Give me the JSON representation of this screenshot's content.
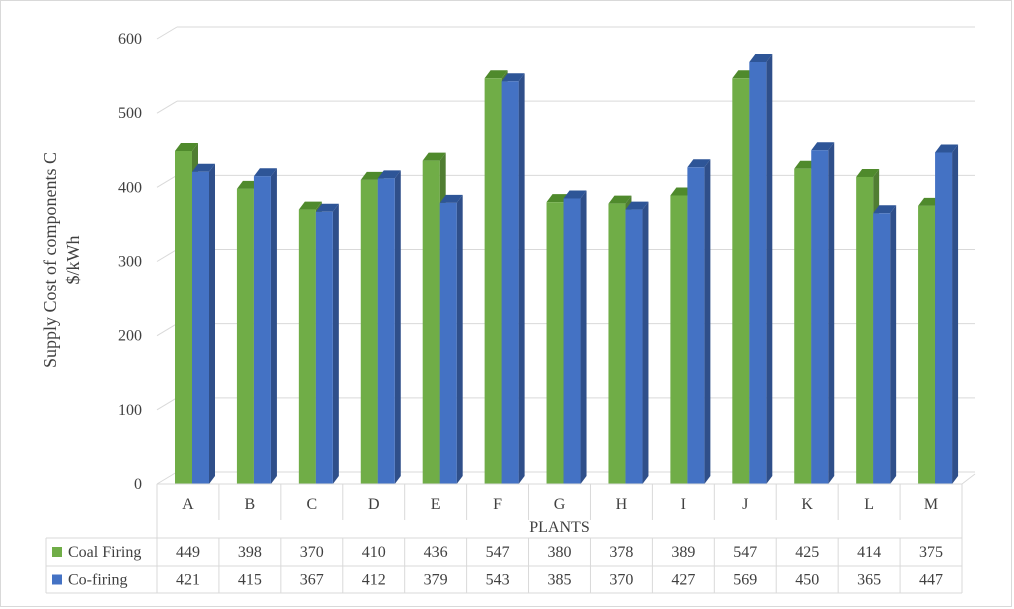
{
  "chart_data": {
    "type": "bar",
    "title": "",
    "ylabel_line1": "Supply  Cost  of components C",
    "ylabel_line2": "$/kWh",
    "xlabel": "PLANTS",
    "ylim": [
      0,
      600
    ],
    "yticks": [
      0,
      100,
      200,
      300,
      400,
      500,
      600
    ],
    "categories": [
      "A",
      "B",
      "C",
      "D",
      "E",
      "F",
      "G",
      "H",
      "I",
      "J",
      "K",
      "L",
      "M"
    ],
    "series": [
      {
        "name": "Coal Firing",
        "color": "#70ad47",
        "side": "#507e32",
        "top": "#4f8a2c",
        "values": [
          449,
          398,
          370,
          410,
          436,
          547,
          380,
          378,
          389,
          547,
          425,
          414,
          375
        ]
      },
      {
        "name": "Co-firing",
        "color": "#4472c4",
        "side": "#2f4f8a",
        "top": "#2e5597",
        "values": [
          421,
          415,
          367,
          412,
          379,
          543,
          385,
          370,
          427,
          569,
          450,
          365,
          447
        ]
      }
    ],
    "grid": true,
    "legend": "data-table"
  }
}
